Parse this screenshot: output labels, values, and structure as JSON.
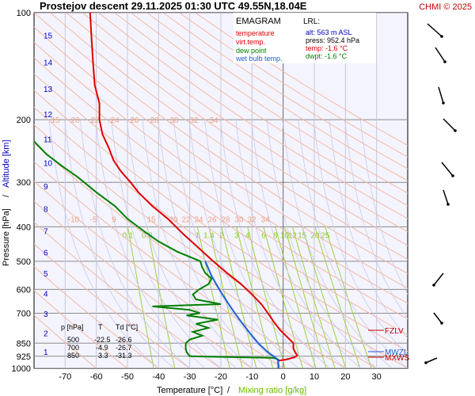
{
  "chart_data": {
    "type": "line",
    "header": {
      "title": "Prostejov  descent  29.11.2025 01:30 UTC  49.55N,18.04E",
      "credit": "CHMI © 2025"
    },
    "diagram_name": "EMAGRAM",
    "legend": [
      {
        "label": "temperature",
        "color": "#e00000"
      },
      {
        "label": "virt.temp.",
        "color": "#e00000"
      },
      {
        "label": "dew point",
        "color": "#008000"
      },
      {
        "label": "wet bulb temp.",
        "color": "#2060d0"
      }
    ],
    "lrl": {
      "title": "LRL:",
      "rows": [
        {
          "text": "alt: 563 m ASL",
          "color": "#0000c0"
        },
        {
          "text": "press: 952.4 hPa",
          "color": "#000000"
        },
        {
          "text": "temp: -1.6 °C",
          "color": "#e00000"
        },
        {
          "text": "dwpt: -1.6 °C",
          "color": "#008000"
        }
      ]
    },
    "axes": {
      "x": {
        "label": "Temperature [°C]",
        "sep": "/",
        "label2": "Mixing ratio [g/kg]",
        "range": [
          -80,
          40
        ],
        "ticks": [
          "-70",
          "-60",
          "-50",
          "-40",
          "-30",
          "-20",
          "-10",
          "0",
          "10",
          "20",
          "30"
        ]
      },
      "y": {
        "label": "Pressure [hPa]",
        "sep": "/",
        "label2": "Altitude [km]",
        "range": [
          1000,
          100
        ],
        "scale": "log",
        "ticks": [
          "100",
          "200",
          "300",
          "400",
          "500",
          "600",
          "700",
          "850",
          "925",
          "1000"
        ],
        "km_ticks": [
          "1",
          "2",
          "3",
          "4",
          "5",
          "6",
          "7",
          "8",
          "9",
          "10",
          "11",
          "12",
          "13",
          "14",
          "15",
          "16"
        ]
      }
    },
    "dry_adiabat_labels": [
      "15",
      "20",
      "22",
      "24",
      "26",
      "28",
      "30",
      "32",
      "34"
    ],
    "dry_adiabat_labels_lower": [
      "-10",
      "-5",
      "9",
      "15",
      "20",
      "22",
      "24",
      "26",
      "28",
      "30",
      "32",
      "34"
    ],
    "mixing_ratio_labels": [
      "0.1",
      "0.2",
      "1",
      "1.4",
      "2",
      "3",
      "4",
      "6",
      "8",
      "10",
      "12",
      "15",
      "20",
      "25"
    ],
    "levels": {
      "fzlv": "FZLV",
      "mwzl": "MWZL",
      "mxws": "MXWS"
    },
    "table": {
      "headers": [
        "p [hPa]",
        "T",
        "Td [°C]"
      ],
      "rows": [
        [
          "500",
          "-22.5",
          "-26.6"
        ],
        [
          "700",
          "-4.9",
          "-26.7"
        ],
        [
          "850",
          "3.3",
          "-31.3"
        ]
      ]
    },
    "series": [
      {
        "name": "temperature",
        "color": "#e00000",
        "points": [
          [
            1000,
            -1.5
          ],
          [
            965,
            -1.6
          ],
          [
            952,
            -1.6
          ],
          [
            945,
            1
          ],
          [
            930,
            3.8
          ],
          [
            920,
            4.5
          ],
          [
            900,
            3.8
          ],
          [
            880,
            3.3
          ],
          [
            850,
            3.3
          ],
          [
            820,
            1.5
          ],
          [
            780,
            -1
          ],
          [
            740,
            -3
          ],
          [
            700,
            -4.9
          ],
          [
            660,
            -7
          ],
          [
            620,
            -10
          ],
          [
            580,
            -13.5
          ],
          [
            540,
            -18
          ],
          [
            500,
            -22.5
          ],
          [
            460,
            -27
          ],
          [
            420,
            -32
          ],
          [
            380,
            -37
          ],
          [
            350,
            -42
          ],
          [
            320,
            -46.5
          ],
          [
            300,
            -49
          ],
          [
            280,
            -52
          ],
          [
            260,
            -54.5
          ],
          [
            240,
            -56
          ],
          [
            220,
            -58
          ],
          [
            200,
            -59
          ],
          [
            180,
            -59
          ],
          [
            160,
            -60.5
          ],
          [
            140,
            -61
          ],
          [
            120,
            -61.5
          ],
          [
            100,
            -62
          ]
        ]
      },
      {
        "name": "dew point",
        "color": "#008000",
        "points": [
          [
            1000,
            -1.5
          ],
          [
            965,
            -1.6
          ],
          [
            952,
            -1.6
          ],
          [
            945,
            -1.6
          ],
          [
            935,
            -3
          ],
          [
            925,
            -30
          ],
          [
            900,
            -31
          ],
          [
            880,
            -31.3
          ],
          [
            850,
            -31.3
          ],
          [
            830,
            -30
          ],
          [
            810,
            -26
          ],
          [
            790,
            -29
          ],
          [
            770,
            -24
          ],
          [
            750,
            -28
          ],
          [
            730,
            -21
          ],
          [
            710,
            -31
          ],
          [
            700,
            -26.7
          ],
          [
            685,
            -30
          ],
          [
            670,
            -42
          ],
          [
            660,
            -20
          ],
          [
            640,
            -28
          ],
          [
            620,
            -29
          ],
          [
            600,
            -27
          ],
          [
            580,
            -24
          ],
          [
            560,
            -23
          ],
          [
            540,
            -25
          ],
          [
            520,
            -26
          ],
          [
            500,
            -26.6
          ],
          [
            470,
            -34
          ],
          [
            440,
            -40
          ],
          [
            410,
            -45
          ],
          [
            380,
            -50
          ],
          [
            350,
            -54
          ],
          [
            320,
            -60
          ],
          [
            290,
            -66
          ],
          [
            270,
            -71
          ],
          [
            250,
            -76
          ],
          [
            230,
            -80
          ]
        ]
      },
      {
        "name": "wet bulb temp.",
        "color": "#2060d0",
        "points": [
          [
            1000,
            -1.5
          ],
          [
            952,
            -1.6
          ],
          [
            940,
            -2
          ],
          [
            900,
            -5
          ],
          [
            850,
            -8
          ],
          [
            800,
            -10.5
          ],
          [
            750,
            -13
          ],
          [
            700,
            -15.5
          ],
          [
            650,
            -18
          ],
          [
            600,
            -20.5
          ],
          [
            550,
            -23
          ],
          [
            500,
            -25
          ]
        ]
      }
    ]
  }
}
